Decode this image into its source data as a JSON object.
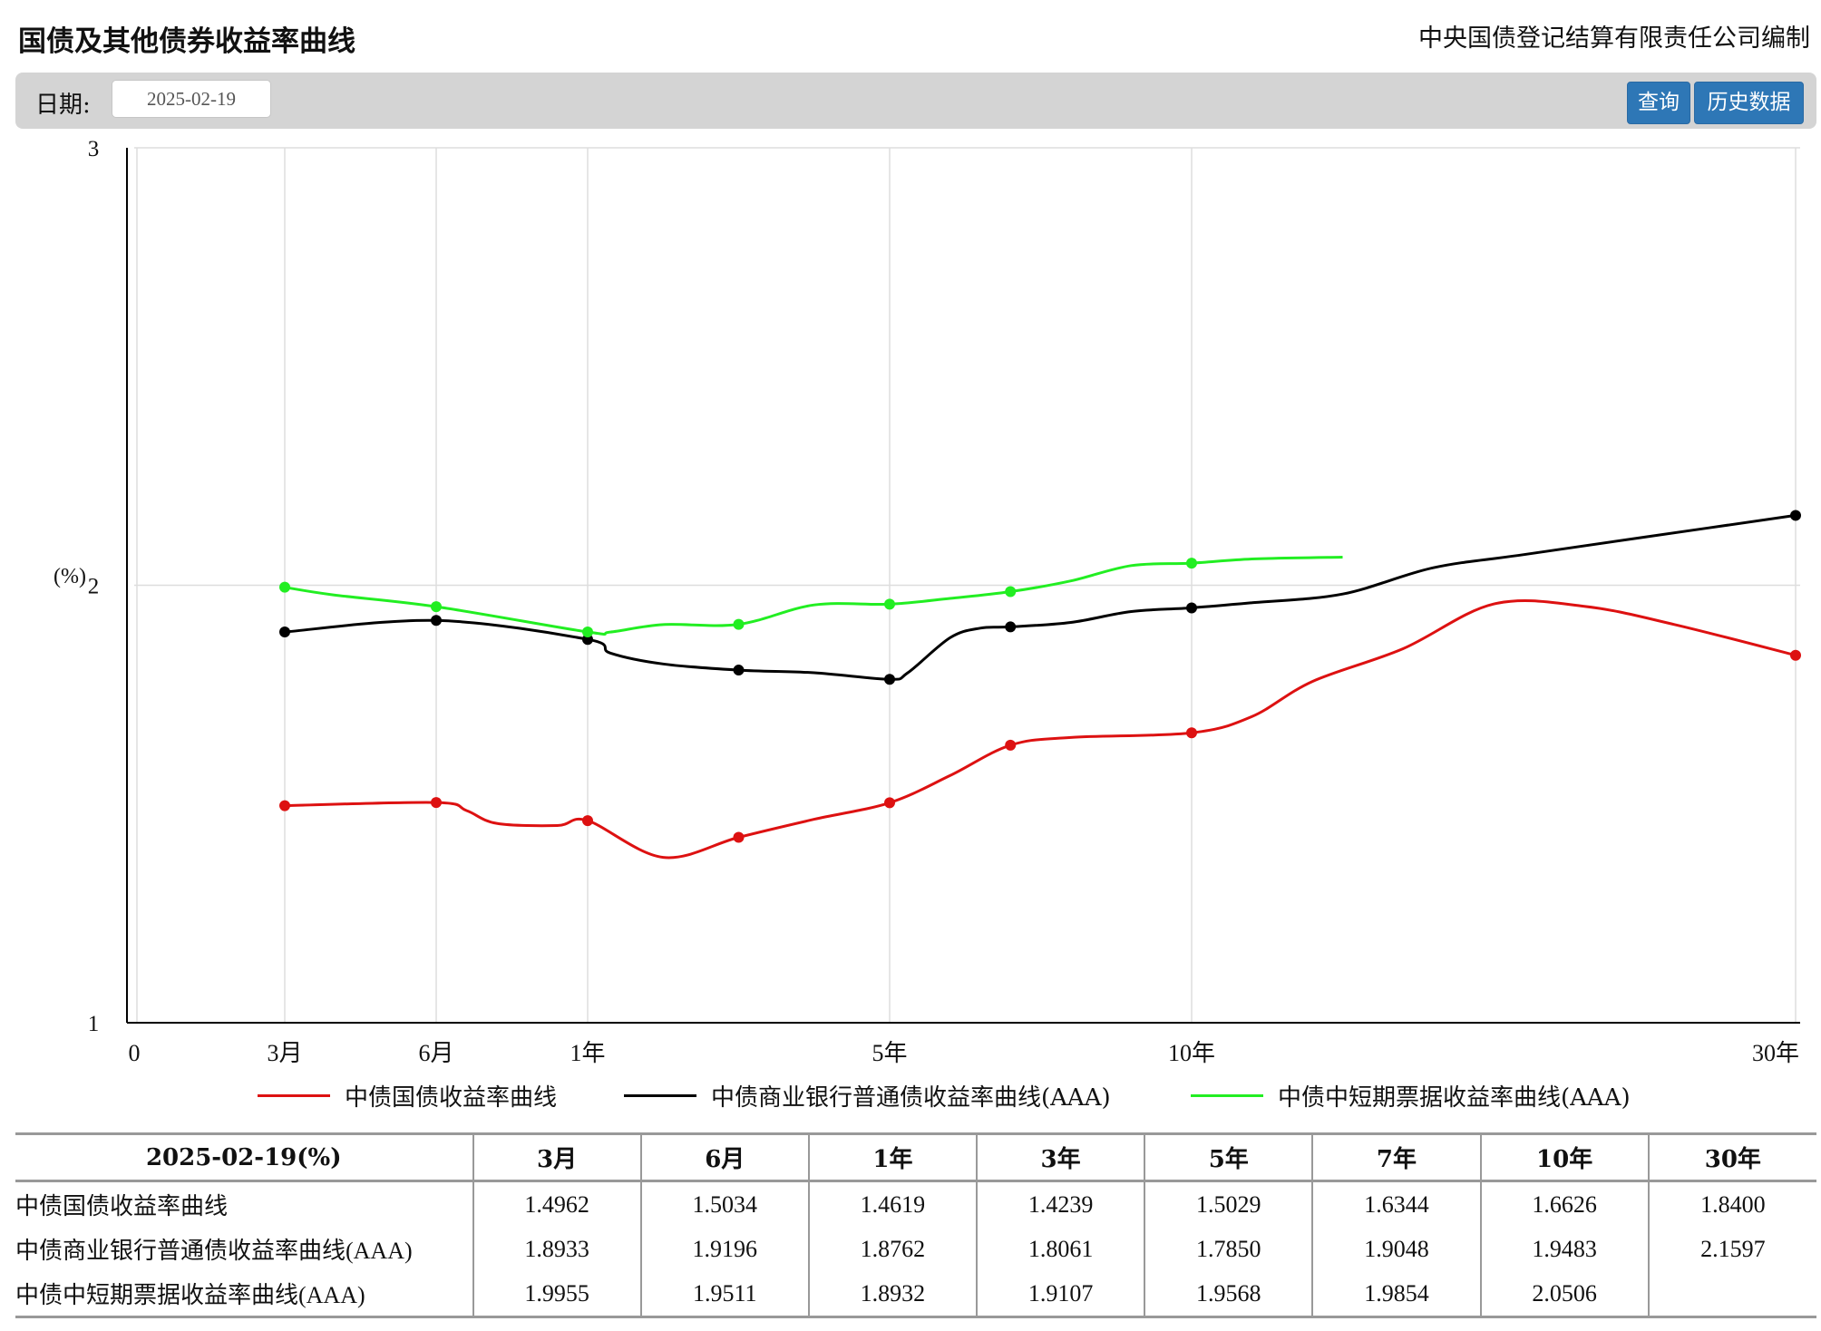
{
  "header": {
    "title": "国债及其他债券收益率曲线",
    "publisher": "中央国债登记结算有限责任公司编制"
  },
  "toolbar": {
    "date_label": "日期:",
    "date_value": "2025-02-19",
    "query_label": "查询",
    "history_label": "历史数据"
  },
  "colors": {
    "series": [
      "#dd1111",
      "#000000",
      "#22ee22"
    ],
    "grid": "#dddddd",
    "button": "#2e77b6"
  },
  "chart_data": {
    "type": "line",
    "ylabel": "(%)",
    "ylim": [
      1,
      3
    ],
    "yticks": [
      1,
      2,
      3
    ],
    "xticks": [
      "0",
      "3月",
      "6月",
      "1年",
      "5年",
      "10年",
      "30年"
    ],
    "grid": true,
    "legend_position": "bottom",
    "series": [
      {
        "name": "中债国债收益率曲线",
        "points": [
          [
            0.25,
            1.4962
          ],
          [
            0.5,
            1.5034
          ],
          [
            1,
            1.4619
          ],
          [
            3,
            1.4239
          ],
          [
            5,
            1.5029
          ],
          [
            7,
            1.6344
          ],
          [
            10,
            1.6626
          ],
          [
            30,
            1.84
          ]
        ],
        "curve": [
          [
            0.25,
            1.4962
          ],
          [
            0.5,
            1.5034
          ],
          [
            0.6,
            1.485
          ],
          [
            0.7,
            1.4557
          ],
          [
            0.9,
            1.4507
          ],
          [
            1.0,
            1.4619
          ],
          [
            2.0,
            1.378
          ],
          [
            3,
            1.4239
          ],
          [
            4,
            1.465
          ],
          [
            5,
            1.5029
          ],
          [
            6,
            1.565
          ],
          [
            7,
            1.6344
          ],
          [
            8,
            1.652
          ],
          [
            10,
            1.6626
          ],
          [
            12,
            1.7
          ],
          [
            14,
            1.78
          ],
          [
            17,
            1.855
          ],
          [
            20,
            1.957
          ],
          [
            23,
            1.952
          ],
          [
            26,
            1.91
          ],
          [
            30,
            1.84
          ]
        ]
      },
      {
        "name": "中债商业银行普通债收益率曲线(AAA)",
        "points": [
          [
            0.25,
            1.8933
          ],
          [
            0.5,
            1.9196
          ],
          [
            1,
            1.8762
          ],
          [
            3,
            1.8061
          ],
          [
            5,
            1.785
          ],
          [
            7,
            1.9048
          ],
          [
            10,
            1.9483
          ],
          [
            30,
            2.1597
          ]
        ],
        "curve": [
          [
            0.25,
            1.8933
          ],
          [
            0.5,
            1.9196
          ],
          [
            1,
            1.8762
          ],
          [
            1.3,
            1.845
          ],
          [
            2,
            1.82
          ],
          [
            3,
            1.8061
          ],
          [
            4,
            1.8
          ],
          [
            5,
            1.785
          ],
          [
            5.3,
            1.8
          ],
          [
            6,
            1.88
          ],
          [
            6.5,
            1.902
          ],
          [
            7,
            1.9048
          ],
          [
            8,
            1.915
          ],
          [
            9,
            1.94
          ],
          [
            10,
            1.9483
          ],
          [
            12,
            1.96
          ],
          [
            15,
            1.98
          ],
          [
            18,
            2.04
          ],
          [
            21,
            2.07
          ],
          [
            25,
            2.11
          ],
          [
            30,
            2.1597
          ]
        ]
      },
      {
        "name": "中债中短期票据收益率曲线(AAA)",
        "points": [
          [
            0.25,
            1.9955
          ],
          [
            0.5,
            1.9511
          ],
          [
            1,
            1.8932
          ],
          [
            3,
            1.9107
          ],
          [
            5,
            1.9568
          ],
          [
            7,
            1.9854
          ],
          [
            10,
            2.0506
          ]
        ],
        "curve": [
          [
            0.25,
            1.9955
          ],
          [
            0.33,
            1.978
          ],
          [
            0.5,
            1.9511
          ],
          [
            1,
            1.8932
          ],
          [
            1.3,
            1.893
          ],
          [
            2,
            1.91
          ],
          [
            3,
            1.9107
          ],
          [
            4,
            1.955
          ],
          [
            5,
            1.9568
          ],
          [
            6,
            1.97
          ],
          [
            7,
            1.9854
          ],
          [
            8,
            2.01
          ],
          [
            9,
            2.045
          ],
          [
            10,
            2.0506
          ],
          [
            12,
            2.06
          ],
          [
            15,
            2.0643
          ]
        ]
      }
    ]
  },
  "table": {
    "corner": "2025-02-19(%)",
    "columns": [
      "3月",
      "6月",
      "1年",
      "3年",
      "5年",
      "7年",
      "10年",
      "30年"
    ],
    "rows": [
      {
        "name": "中债国债收益率曲线",
        "values": [
          "1.4962",
          "1.5034",
          "1.4619",
          "1.4239",
          "1.5029",
          "1.6344",
          "1.6626",
          "1.8400"
        ]
      },
      {
        "name": "中债商业银行普通债收益率曲线(AAA)",
        "values": [
          "1.8933",
          "1.9196",
          "1.8762",
          "1.8061",
          "1.7850",
          "1.9048",
          "1.9483",
          "2.1597"
        ]
      },
      {
        "name": "中债中短期票据收益率曲线(AAA)",
        "values": [
          "1.9955",
          "1.9511",
          "1.8932",
          "1.9107",
          "1.9568",
          "1.9854",
          "2.0506",
          ""
        ]
      }
    ]
  }
}
